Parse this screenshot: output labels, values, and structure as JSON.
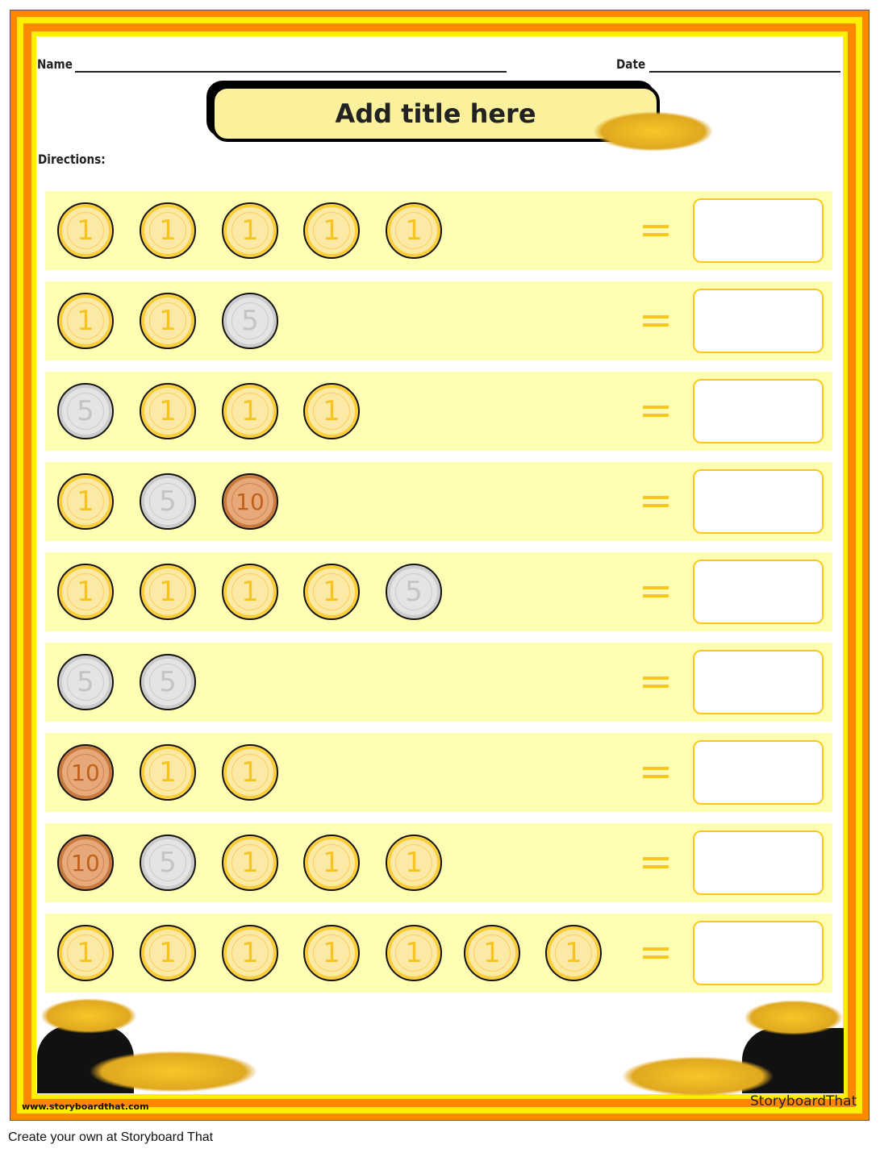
{
  "header": {
    "name_label": "Name",
    "date_label": "Date",
    "title": "Add title here",
    "directions_label": "Directions:"
  },
  "rows": [
    {
      "coins": [
        1,
        1,
        1,
        1,
        1
      ]
    },
    {
      "coins": [
        1,
        1,
        5
      ]
    },
    {
      "coins": [
        5,
        1,
        1,
        1
      ]
    },
    {
      "coins": [
        1,
        5,
        10
      ]
    },
    {
      "coins": [
        1,
        1,
        1,
        1,
        5
      ]
    },
    {
      "coins": [
        5,
        5
      ]
    },
    {
      "coins": [
        10,
        1,
        1
      ]
    },
    {
      "coins": [
        10,
        5,
        1,
        1,
        1
      ]
    },
    {
      "coins": [
        1,
        1,
        1,
        1,
        1,
        1,
        1
      ]
    }
  ],
  "equals_sign": "=",
  "answer_value": "",
  "footer": {
    "website": "www.storyboardthat.com",
    "logo_text": "StoryboardThat",
    "create_text": "Create your own at Storyboard That"
  },
  "colors": {
    "border_orange": "#ff8800",
    "border_yellow": "#ffee00",
    "row_bg": "#ffffb3",
    "accent": "#fcc61a"
  }
}
